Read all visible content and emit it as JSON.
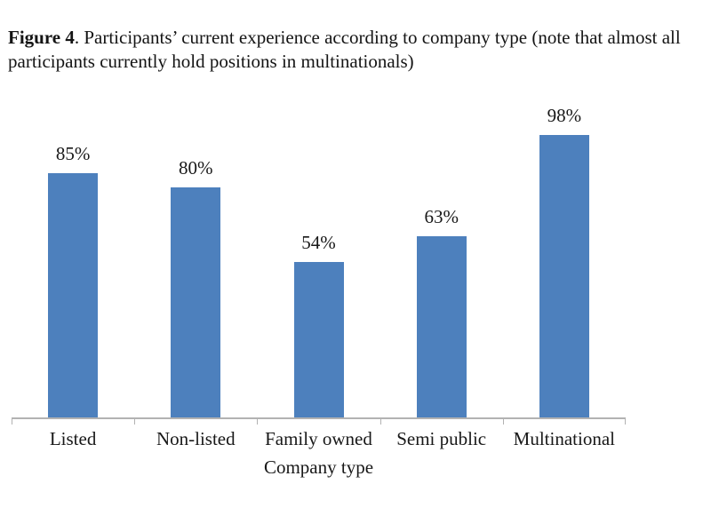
{
  "figure": {
    "caption_label": "Figure 4",
    "caption_text": ". Participants’ current experience according to company type (note that almost all participants currently hold positions in multinationals)"
  },
  "chart_data": {
    "type": "bar",
    "categories": [
      "Listed",
      "Non-listed",
      "Family owned",
      "Semi public",
      "Multinational"
    ],
    "values": [
      85,
      80,
      54,
      63,
      98
    ],
    "value_labels": [
      "85%",
      "80%",
      "54%",
      "63%",
      "98%"
    ],
    "title": "",
    "xlabel": "Company type",
    "ylabel": "",
    "ylim": [
      0,
      100
    ],
    "grid": false,
    "legend": "none",
    "data_labels": "percent shown above each bar",
    "bar_color": "#4d80bd",
    "axis_color": "#b2b2b2",
    "text_color": "#181818"
  }
}
